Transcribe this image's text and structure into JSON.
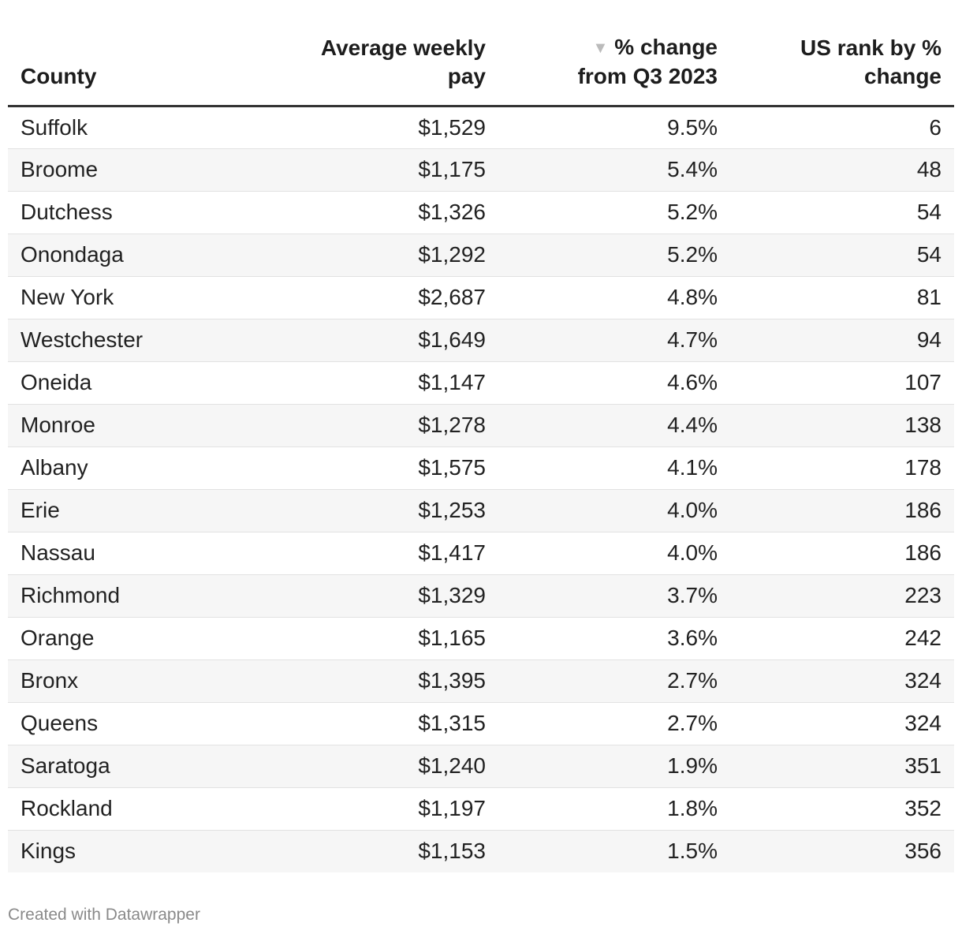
{
  "chart_data": {
    "type": "table",
    "columns": [
      "County",
      "Average weekly pay",
      "% change from Q3 2023",
      "US rank by % change"
    ],
    "header_lines": {
      "county": [
        "County"
      ],
      "pay": [
        "Average weekly",
        "pay"
      ],
      "change": [
        "% change",
        "from Q3 2023"
      ],
      "rank": [
        "US rank by %",
        "change"
      ]
    },
    "sort": {
      "column": "% change from Q3 2023",
      "direction": "descending",
      "icon": "sort-descending-icon"
    },
    "rows": [
      {
        "county": "Suffolk",
        "pay": "$1,529",
        "change": "9.5%",
        "rank": "6"
      },
      {
        "county": "Broome",
        "pay": "$1,175",
        "change": "5.4%",
        "rank": "48"
      },
      {
        "county": "Dutchess",
        "pay": "$1,326",
        "change": "5.2%",
        "rank": "54"
      },
      {
        "county": "Onondaga",
        "pay": "$1,292",
        "change": "5.2%",
        "rank": "54"
      },
      {
        "county": "New York",
        "pay": "$2,687",
        "change": "4.8%",
        "rank": "81"
      },
      {
        "county": "Westchester",
        "pay": "$1,649",
        "change": "4.7%",
        "rank": "94"
      },
      {
        "county": "Oneida",
        "pay": "$1,147",
        "change": "4.6%",
        "rank": "107"
      },
      {
        "county": "Monroe",
        "pay": "$1,278",
        "change": "4.4%",
        "rank": "138"
      },
      {
        "county": "Albany",
        "pay": "$1,575",
        "change": "4.1%",
        "rank": "178"
      },
      {
        "county": "Erie",
        "pay": "$1,253",
        "change": "4.0%",
        "rank": "186"
      },
      {
        "county": "Nassau",
        "pay": "$1,417",
        "change": "4.0%",
        "rank": "186"
      },
      {
        "county": "Richmond",
        "pay": "$1,329",
        "change": "3.7%",
        "rank": "223"
      },
      {
        "county": "Orange",
        "pay": "$1,165",
        "change": "3.6%",
        "rank": "242"
      },
      {
        "county": "Bronx",
        "pay": "$1,395",
        "change": "2.7%",
        "rank": "324"
      },
      {
        "county": "Queens",
        "pay": "$1,315",
        "change": "2.7%",
        "rank": "324"
      },
      {
        "county": "Saratoga",
        "pay": "$1,240",
        "change": "1.9%",
        "rank": "351"
      },
      {
        "county": "Rockland",
        "pay": "$1,197",
        "change": "1.8%",
        "rank": "352"
      },
      {
        "county": "Kings",
        "pay": "$1,153",
        "change": "1.5%",
        "rank": "356"
      }
    ]
  },
  "footer": {
    "credit": "Created with Datawrapper"
  },
  "colors": {
    "text": "#222222",
    "header_rule": "#333333",
    "stripe": "#f6f6f6",
    "footer": "#8a8a8a",
    "sort_icon": "#bbbbbb"
  }
}
